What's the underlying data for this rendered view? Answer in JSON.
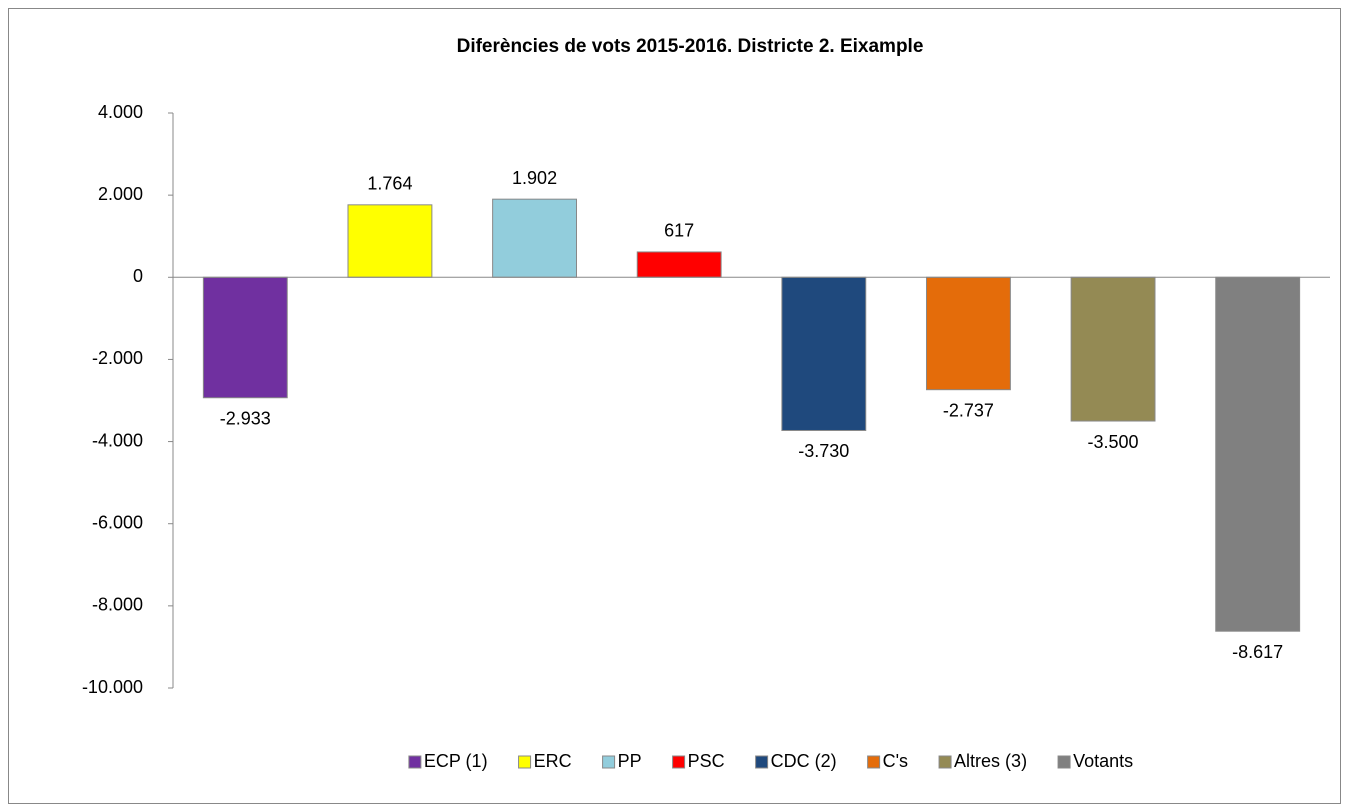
{
  "chart_data": {
    "type": "bar",
    "title": "Diferències de vots 2015-2016. Districte 2. Eixample",
    "categories": [
      "ECP (1)",
      "ERC",
      "PP",
      "PSC",
      "CDC (2)",
      "C's",
      "Altres (3)",
      "Votants"
    ],
    "values": [
      -2933,
      1764,
      1902,
      617,
      -3730,
      -2737,
      -3500,
      -8617
    ],
    "value_labels": [
      "-2.933",
      "1.764",
      "1.902",
      "617",
      "-3.730",
      "-2.737",
      "-3.500",
      "-8.617"
    ],
    "colors": [
      "#7030a0",
      "#ffff00",
      "#92cddc",
      "#ff0000",
      "#1f497d",
      "#e46c0a",
      "#948a54",
      "#808080"
    ],
    "ylim": [
      -10000,
      4000
    ],
    "yticks": [
      {
        "value": -10000,
        "label": "-10.000"
      },
      {
        "value": -8000,
        "label": "-8.000"
      },
      {
        "value": -6000,
        "label": "-6.000"
      },
      {
        "value": -4000,
        "label": "-4.000"
      },
      {
        "value": -2000,
        "label": "-2.000"
      },
      0,
      {
        "value": 2000,
        "label": "2.000"
      },
      {
        "value": 4000,
        "label": "4.000"
      }
    ],
    "legend": "bottom"
  }
}
